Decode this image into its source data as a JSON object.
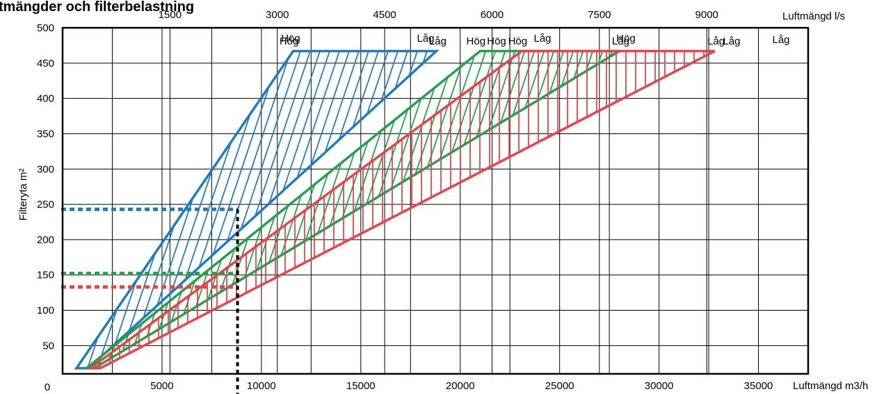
{
  "chart_data": {
    "type": "area",
    "title": "tmängder och filterbelastning",
    "xlabel_bottom": "Luftmängd m3/h",
    "xlabel_top": "Luftmängd l/s",
    "ylabel": "Filteryta m²",
    "bottom_origin_label": "0",
    "x_ticks_bottom": [
      5000,
      10000,
      15000,
      20000,
      25000,
      30000,
      35000
    ],
    "x_ticks_top": [
      1500,
      3000,
      4500,
      6000,
      7500,
      9000
    ],
    "y_ticks": [
      50,
      100,
      150,
      200,
      250,
      300,
      350,
      400,
      450,
      500
    ],
    "xlim": [
      0,
      37500
    ],
    "ylim": [
      10,
      500
    ],
    "grid": true,
    "series": [
      {
        "color": "#1f7bbf",
        "hatch_direction": "forward",
        "lower_line": [
          [
            700,
            18
          ],
          [
            11600,
            467
          ]
        ],
        "upper_line": [
          [
            1300,
            18
          ],
          [
            18800,
            467
          ]
        ],
        "reference_level": 243,
        "top_labels": [
          "Hög",
          "Låg"
        ]
      },
      {
        "color": "#22a04b",
        "hatch_direction": "forward",
        "lower_line": [
          [
            1200,
            18
          ],
          [
            21000,
            467
          ]
        ],
        "upper_line": [
          [
            1600,
            18
          ],
          [
            28000,
            467
          ]
        ],
        "reference_level": 152,
        "top_labels": [
          "Hög",
          "Låg"
        ]
      },
      {
        "color": "#e8434b",
        "hatch_direction": "vertical",
        "lower_line": [
          [
            1400,
            18
          ],
          [
            23100,
            467
          ]
        ],
        "upper_line": [
          [
            1900,
            18
          ],
          [
            32800,
            467
          ]
        ],
        "reference_level": 133,
        "top_labels": [
          "Hög",
          "Låg"
        ]
      }
    ],
    "extra_labels": [
      "Hög",
      "Låg",
      "Hög",
      "Låg",
      "Hög",
      "Låg",
      "Låg"
    ],
    "reference_x": 8800
  }
}
